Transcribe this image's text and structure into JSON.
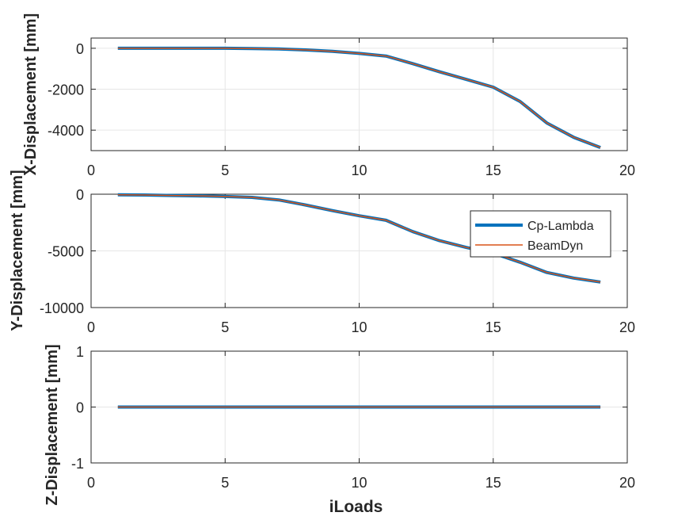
{
  "chart_data": [
    {
      "type": "line",
      "ylabel": "X-Displacement [mm]",
      "xlabel": "",
      "xlim": [
        0,
        20
      ],
      "ylim": [
        -5000,
        500
      ],
      "xticks": [
        "0",
        "5",
        "10",
        "15",
        "20"
      ],
      "yticks": [
        0,
        -2000,
        -4000
      ],
      "ytick_labels": [
        "0",
        "-2000",
        "-4000"
      ],
      "grid": true,
      "x": [
        1,
        2,
        3,
        4,
        5,
        6,
        7,
        8,
        9,
        10,
        11,
        12,
        13,
        14,
        15,
        16,
        17,
        18,
        19
      ],
      "series": [
        {
          "name": "Cp-Lambda",
          "color": "#0072BD",
          "values": [
            0,
            0,
            0,
            0,
            0,
            -10,
            -30,
            -80,
            -150,
            -250,
            -380,
            -750,
            -1150,
            -1520,
            -1900,
            -2600,
            -3650,
            -4350,
            -4850
          ]
        },
        {
          "name": "BeamDyn",
          "color": "#D95319",
          "values": [
            0,
            0,
            0,
            0,
            0,
            -10,
            -30,
            -80,
            -150,
            -250,
            -380,
            -750,
            -1150,
            -1520,
            -1900,
            -2600,
            -3650,
            -4350,
            -4850
          ]
        }
      ]
    },
    {
      "type": "line",
      "ylabel": "Y-Displacement [mm]",
      "xlabel": "",
      "xlim": [
        0,
        20
      ],
      "ylim": [
        -10000,
        0
      ],
      "xticks": [
        "0",
        "5",
        "10",
        "15",
        "20"
      ],
      "yticks": [
        0,
        -5000,
        -10000
      ],
      "ytick_labels": [
        "0",
        "-5000",
        "-10000"
      ],
      "grid": true,
      "legend_placement": "right",
      "x": [
        1,
        2,
        3,
        4,
        5,
        6,
        7,
        8,
        9,
        10,
        11,
        12,
        13,
        14,
        15,
        16,
        17,
        18,
        19
      ],
      "series": [
        {
          "name": "Cp-Lambda",
          "color": "#0072BD",
          "values": [
            -50,
            -70,
            -110,
            -150,
            -200,
            -280,
            -500,
            -950,
            -1450,
            -1900,
            -2300,
            -3300,
            -4100,
            -4700,
            -5200,
            -6000,
            -6900,
            -7400,
            -7750
          ]
        },
        {
          "name": "BeamDyn",
          "color": "#D95319",
          "values": [
            -50,
            -70,
            -110,
            -150,
            -200,
            -280,
            -500,
            -950,
            -1450,
            -1900,
            -2300,
            -3300,
            -4100,
            -4700,
            -5200,
            -6000,
            -6900,
            -7400,
            -7750
          ]
        }
      ]
    },
    {
      "type": "line",
      "ylabel": "Z-Displacement [mm]",
      "xlabel": "iLoads",
      "xlim": [
        0,
        20
      ],
      "ylim": [
        -1,
        1
      ],
      "xticks": [
        "0",
        "5",
        "10",
        "15",
        "20"
      ],
      "yticks": [
        1,
        0,
        -1
      ],
      "ytick_labels": [
        "1",
        "0",
        "-1"
      ],
      "grid": true,
      "x": [
        1,
        2,
        3,
        4,
        5,
        6,
        7,
        8,
        9,
        10,
        11,
        12,
        13,
        14,
        15,
        16,
        17,
        18,
        19
      ],
      "series": [
        {
          "name": "Cp-Lambda",
          "color": "#0072BD",
          "values": [
            0,
            0,
            0,
            0,
            0,
            0,
            0,
            0,
            0,
            0,
            0,
            0,
            0,
            0,
            0,
            0,
            0,
            0,
            0
          ]
        },
        {
          "name": "BeamDyn",
          "color": "#D95319",
          "values": [
            0,
            0,
            0,
            0,
            0,
            0,
            0,
            0,
            0,
            0,
            0,
            0,
            0,
            0,
            0,
            0,
            0,
            0,
            0
          ]
        }
      ]
    }
  ]
}
